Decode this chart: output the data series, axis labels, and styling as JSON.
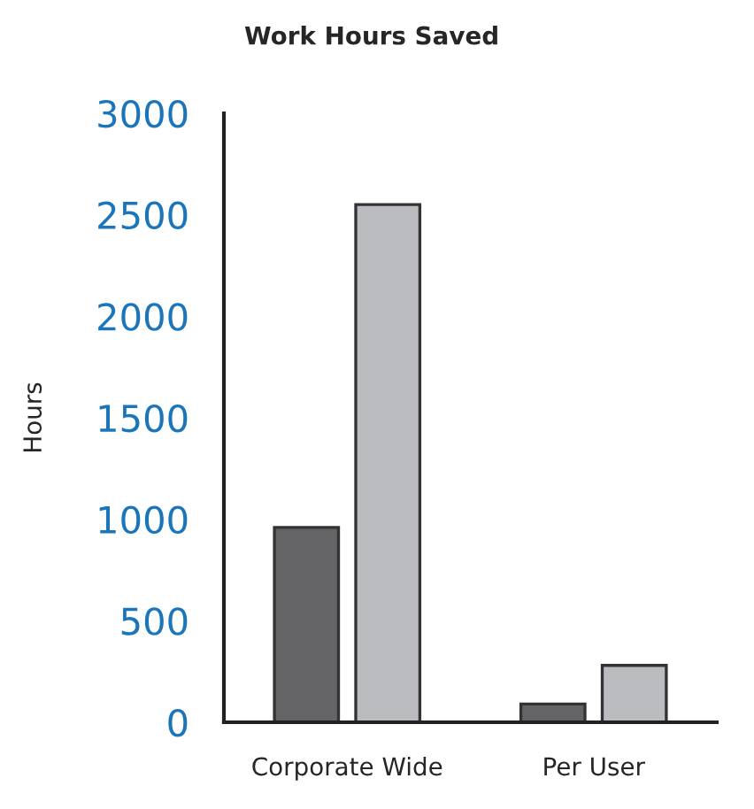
{
  "chart_data": {
    "type": "bar",
    "title": "Work Hours Saved",
    "ylabel": "Hours",
    "categories": [
      "Corporate Wide",
      "Per User"
    ],
    "series": [
      {
        "color": "#646466",
        "values": [
          960,
          90
        ]
      },
      {
        "color": "#bbbcc0",
        "values": [
          2550,
          280
        ]
      }
    ],
    "ylim": [
      0,
      3000
    ],
    "yticks": [
      0,
      500,
      1000,
      1500,
      2000,
      2500,
      3000
    ],
    "grid": false,
    "legend": false
  }
}
